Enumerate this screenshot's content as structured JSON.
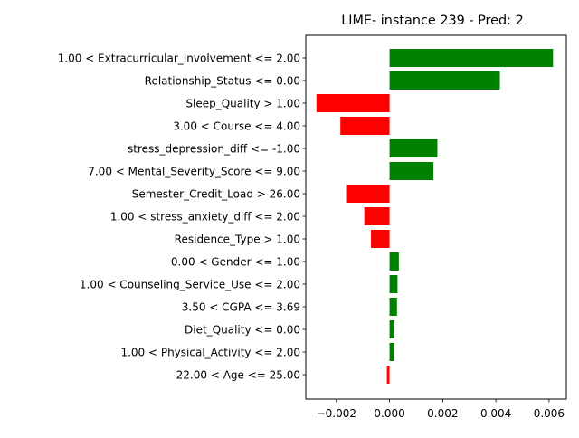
{
  "chart_data": {
    "type": "bar",
    "orientation": "horizontal",
    "title": "LIME- instance 239 - Pred: 2",
    "xlabel": "",
    "ylabel": "",
    "xlim": [
      -0.00315,
      0.00665
    ],
    "xticks": [
      -0.002,
      0.0,
      0.002,
      0.004,
      0.006
    ],
    "xtick_labels": [
      "−0.002",
      "0.000",
      "0.002",
      "0.004",
      "0.006"
    ],
    "grid": false,
    "legend": "none",
    "colors": {
      "positive": "#008000",
      "negative": "#ff0000"
    },
    "categories": [
      "1.00 < Extracurricular_Involvement <= 2.00",
      "Relationship_Status <= 0.00",
      "Sleep_Quality > 1.00",
      "3.00 < Course <= 4.00",
      "stress_depression_diff <= -1.00",
      "7.00 < Mental_Severity_Score <= 9.00",
      "Semester_Credit_Load > 26.00",
      "1.00 < stress_anxiety_diff <= 2.00",
      "Residence_Type > 1.00",
      "0.00 < Gender <= 1.00",
      "1.00 < Counseling_Service_Use <= 2.00",
      "3.50 < CGPA <= 3.69",
      "Diet_Quality <= 0.00",
      "1.00 < Physical_Activity <= 2.00",
      "22.00 < Age <= 25.00"
    ],
    "values": [
      0.00615,
      0.00415,
      -0.00275,
      -0.00185,
      0.0018,
      0.00165,
      -0.0016,
      -0.00095,
      -0.0007,
      0.00035,
      0.0003,
      0.00028,
      0.00018,
      0.00018,
      -0.0001
    ]
  }
}
